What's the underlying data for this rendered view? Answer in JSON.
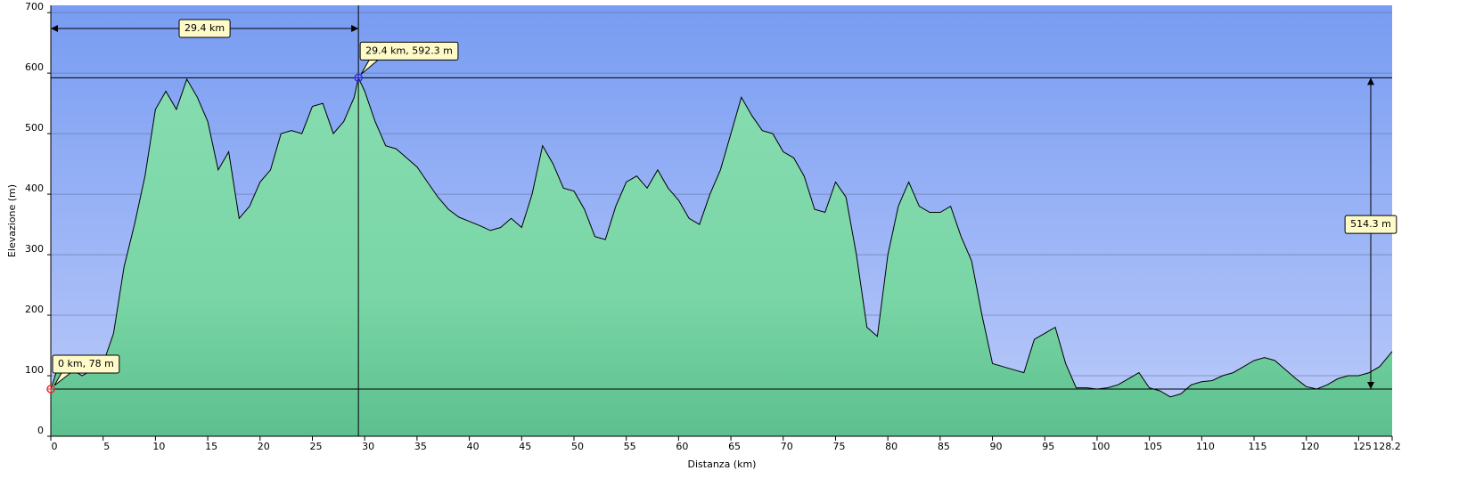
{
  "chart_data": {
    "type": "area",
    "xlabel": "Distanza   (km)",
    "ylabel": "Elevazione (m)",
    "xlim": [
      0,
      128.2
    ],
    "ylim": [
      0,
      712
    ],
    "xticks": [
      0,
      5,
      10,
      15,
      20,
      25,
      30,
      35,
      40,
      45,
      50,
      55,
      60,
      65,
      70,
      75,
      80,
      85,
      90,
      95,
      100,
      105,
      110,
      115,
      120,
      125,
      128.2
    ],
    "yticks": [
      0,
      100,
      200,
      300,
      400,
      500,
      600,
      700
    ],
    "grid": true,
    "line_color": "#000000",
    "fill_top": "#86dcb0",
    "fill_bottom": "#5cc08e",
    "x": [
      0,
      1,
      2,
      3,
      4,
      5,
      6,
      7,
      8,
      9,
      10,
      11,
      12,
      13,
      14,
      15,
      16,
      17,
      18,
      19,
      20,
      21,
      22,
      23,
      24,
      25,
      26,
      27,
      28,
      29,
      29.4,
      30,
      31,
      32,
      33,
      34,
      35,
      36,
      37,
      38,
      39,
      40,
      41,
      42,
      43,
      44,
      45,
      46,
      47,
      48,
      49,
      50,
      51,
      52,
      53,
      54,
      55,
      56,
      57,
      58,
      59,
      60,
      61,
      62,
      63,
      64,
      65,
      66,
      67,
      68,
      69,
      70,
      71,
      72,
      73,
      74,
      75,
      76,
      77,
      78,
      79,
      80,
      81,
      82,
      83,
      84,
      85,
      86,
      87,
      88,
      89,
      90,
      91,
      92,
      93,
      94,
      95,
      96,
      97,
      98,
      99,
      100,
      101,
      102,
      103,
      104,
      105,
      106,
      107,
      108,
      109,
      110,
      111,
      112,
      113,
      114,
      115,
      116,
      117,
      118,
      119,
      120,
      121,
      122,
      123,
      124,
      125,
      126,
      127,
      128.2
    ],
    "values": [
      78,
      130,
      110,
      100,
      110,
      120,
      170,
      280,
      350,
      430,
      540,
      570,
      540,
      590,
      560,
      520,
      440,
      470,
      360,
      380,
      420,
      440,
      500,
      505,
      500,
      545,
      550,
      500,
      520,
      560,
      592.3,
      570,
      520,
      480,
      475,
      460,
      445,
      420,
      395,
      375,
      362,
      355,
      348,
      340,
      345,
      360,
      345,
      400,
      480,
      450,
      410,
      405,
      375,
      330,
      325,
      380,
      420,
      430,
      410,
      440,
      410,
      390,
      360,
      350,
      400,
      440,
      500,
      560,
      530,
      505,
      500,
      470,
      460,
      430,
      375,
      370,
      420,
      395,
      300,
      180,
      165,
      300,
      380,
      420,
      380,
      370,
      370,
      380,
      330,
      290,
      200,
      120,
      115,
      110,
      105,
      160,
      170,
      180,
      120,
      80,
      80,
      78,
      80,
      85,
      95,
      105,
      80,
      75,
      65,
      70,
      85,
      90,
      92,
      100,
      105,
      115,
      125,
      130,
      125,
      110,
      95,
      82,
      78,
      85,
      95,
      100,
      100,
      105,
      115,
      140
    ],
    "markers": [
      {
        "x": 0,
        "y": 78,
        "label": "0 km, 78 m",
        "color": "#e03030"
      },
      {
        "x": 29.4,
        "y": 592.3,
        "label": "29.4 km, 592.3 m",
        "color": "#3030e0"
      }
    ],
    "distance_label": "29.4 km",
    "elevation_diff_label": "514.3 m"
  }
}
